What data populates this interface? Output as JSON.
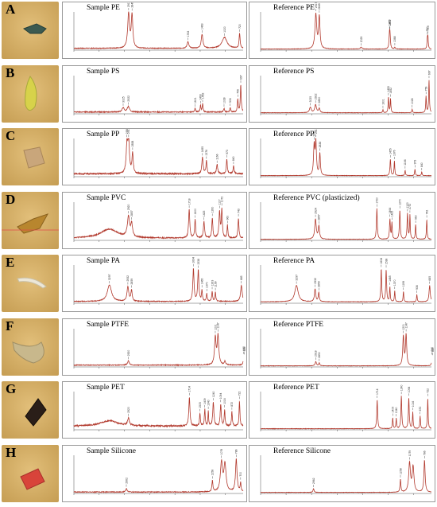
{
  "colors": {
    "spectrum": "#b23a2e",
    "axis": "#555555",
    "peak_label": "#333333"
  },
  "chart_data": [
    {
      "type": "line",
      "panel_letter": "A",
      "sample": {
        "title": "Sample PE",
        "peaks": [
          {
            "x": 2917,
            "y": 0.95,
            "w": 22,
            "label": "2917"
          },
          {
            "x": 2849,
            "y": 0.9,
            "w": 18,
            "label": "2849"
          },
          {
            "x": 1743,
            "y": 0.18,
            "w": 20,
            "label": "1743"
          },
          {
            "x": 1463,
            "y": 0.38,
            "w": 20,
            "label": "1463"
          },
          {
            "x": 1020,
            "y": 0.3,
            "w": 60,
            "label": "1020"
          },
          {
            "x": 720,
            "y": 0.4,
            "w": 12,
            "label": "720"
          }
        ],
        "noise": 0.02,
        "baseline": 0.05
      },
      "reference": {
        "title": "Reference PE",
        "peaks": [
          {
            "x": 2917,
            "y": 0.95,
            "w": 20,
            "label": "2917"
          },
          {
            "x": 2849,
            "y": 0.88,
            "w": 16,
            "label": "2849"
          },
          {
            "x": 2029,
            "y": 0.05,
            "w": 20,
            "label": "2029"
          },
          {
            "x": 1473,
            "y": 0.35,
            "w": 10,
            "label": "1473"
          },
          {
            "x": 1463,
            "y": 0.33,
            "w": 10,
            "label": "1463"
          },
          {
            "x": 1368,
            "y": 0.05,
            "w": 10,
            "label": "1368"
          },
          {
            "x": 730,
            "y": 0.25,
            "w": 8,
            "label": "730"
          },
          {
            "x": 719,
            "y": 0.3,
            "w": 8,
            "label": "719"
          }
        ],
        "noise": 0.01,
        "baseline": 0.03
      }
    },
    {
      "type": "line",
      "panel_letter": "B",
      "sample": {
        "title": "Sample PS",
        "peaks": [
          {
            "x": 3025,
            "y": 0.12,
            "w": 25,
            "label": "3025"
          },
          {
            "x": 2922,
            "y": 0.15,
            "w": 25,
            "label": "2922"
          },
          {
            "x": 1601,
            "y": 0.1,
            "w": 10,
            "label": "1601"
          },
          {
            "x": 1493,
            "y": 0.18,
            "w": 10,
            "label": "1493"
          },
          {
            "x": 1452,
            "y": 0.22,
            "w": 10,
            "label": "1452"
          },
          {
            "x": 1028,
            "y": 0.1,
            "w": 12,
            "label": "1028"
          },
          {
            "x": 906,
            "y": 0.12,
            "w": 10,
            "label": "906"
          },
          {
            "x": 756,
            "y": 0.35,
            "w": 10,
            "label": "756"
          },
          {
            "x": 697,
            "y": 0.75,
            "w": 10,
            "label": "697"
          }
        ],
        "noise": 0.025,
        "baseline": 0.05
      },
      "reference": {
        "title": "Reference PS",
        "peaks": [
          {
            "x": 3025,
            "y": 0.15,
            "w": 20,
            "label": "3025"
          },
          {
            "x": 2922,
            "y": 0.22,
            "w": 20,
            "label": "2922"
          },
          {
            "x": 2850,
            "y": 0.12,
            "w": 15,
            "label": "2850"
          },
          {
            "x": 1601,
            "y": 0.08,
            "w": 8,
            "label": "1601"
          },
          {
            "x": 1493,
            "y": 0.42,
            "w": 8,
            "label": "1493"
          },
          {
            "x": 1452,
            "y": 0.38,
            "w": 8,
            "label": "1452"
          },
          {
            "x": 1028,
            "y": 0.1,
            "w": 8,
            "label": "1028"
          },
          {
            "x": 756,
            "y": 0.45,
            "w": 8,
            "label": "756"
          },
          {
            "x": 697,
            "y": 0.9,
            "w": 8,
            "label": "697"
          }
        ],
        "noise": 0.01,
        "baseline": 0.03
      }
    },
    {
      "type": "line",
      "panel_letter": "C",
      "sample": {
        "title": "Sample PP",
        "peaks": [
          {
            "x": 2950,
            "y": 0.75,
            "w": 18,
            "label": "2950"
          },
          {
            "x": 2917,
            "y": 0.9,
            "w": 18,
            "label": "2917"
          },
          {
            "x": 2838,
            "y": 0.55,
            "w": 15,
            "label": "2838"
          },
          {
            "x": 1455,
            "y": 0.45,
            "w": 15,
            "label": "1455"
          },
          {
            "x": 1376,
            "y": 0.35,
            "w": 12,
            "label": "1376"
          },
          {
            "x": 1166,
            "y": 0.25,
            "w": 15,
            "label": "1166"
          },
          {
            "x": 973,
            "y": 0.4,
            "w": 12,
            "label": "973"
          },
          {
            "x": 840,
            "y": 0.22,
            "w": 12,
            "label": "840"
          }
        ],
        "noise": 0.04,
        "baseline": 0.08
      },
      "reference": {
        "title": "Reference PP",
        "peaks": [
          {
            "x": 2950,
            "y": 0.8,
            "w": 14,
            "label": "2950"
          },
          {
            "x": 2917,
            "y": 0.9,
            "w": 14,
            "label": "2917"
          },
          {
            "x": 2838,
            "y": 0.6,
            "w": 12,
            "label": "2838"
          },
          {
            "x": 1455,
            "y": 0.45,
            "w": 10,
            "label": "1455"
          },
          {
            "x": 1376,
            "y": 0.4,
            "w": 8,
            "label": "1376"
          },
          {
            "x": 1166,
            "y": 0.15,
            "w": 8,
            "label": "1166"
          },
          {
            "x": 973,
            "y": 0.18,
            "w": 8,
            "label": "973"
          },
          {
            "x": 840,
            "y": 0.1,
            "w": 8,
            "label": "840"
          }
        ],
        "noise": 0.01,
        "baseline": 0.03
      }
    },
    {
      "type": "line",
      "panel_letter": "D",
      "sample": {
        "title": "Sample PVC",
        "peaks": [
          {
            "x": 3300,
            "y": 0.25,
            "w": 200,
            "label": ""
          },
          {
            "x": 2920,
            "y": 0.55,
            "w": 25,
            "label": "2920"
          },
          {
            "x": 2857,
            "y": 0.35,
            "w": 20,
            "label": "2857"
          },
          {
            "x": 1718,
            "y": 0.78,
            "w": 14,
            "label": "1718"
          },
          {
            "x": 1600,
            "y": 0.5,
            "w": 12,
            "label": "1600"
          },
          {
            "x": 1425,
            "y": 0.45,
            "w": 14,
            "label": "1425"
          },
          {
            "x": 1260,
            "y": 0.55,
            "w": 12,
            "label": "1260"
          },
          {
            "x": 1117,
            "y": 0.72,
            "w": 14,
            "label": "1117"
          },
          {
            "x": 1072,
            "y": 0.78,
            "w": 12,
            "label": "1072"
          },
          {
            "x": 960,
            "y": 0.35,
            "w": 10,
            "label": "960"
          },
          {
            "x": 743,
            "y": 0.55,
            "w": 12,
            "label": "743"
          }
        ],
        "noise": 0.03,
        "baseline": 0.06
      },
      "reference": {
        "title": "Reference PVC (plasticized)",
        "peaks": [
          {
            "x": 2924,
            "y": 0.55,
            "w": 18,
            "label": "2924"
          },
          {
            "x": 2857,
            "y": 0.35,
            "w": 15,
            "label": "2857"
          },
          {
            "x": 1720,
            "y": 0.85,
            "w": 10,
            "label": "1720"
          },
          {
            "x": 1464,
            "y": 0.55,
            "w": 10,
            "label": "1464"
          },
          {
            "x": 1425,
            "y": 0.45,
            "w": 8,
            "label": "1425"
          },
          {
            "x": 1270,
            "y": 0.8,
            "w": 10,
            "label": "1270"
          },
          {
            "x": 1120,
            "y": 0.7,
            "w": 10,
            "label": "1120"
          },
          {
            "x": 1072,
            "y": 0.65,
            "w": 8,
            "label": "1072"
          },
          {
            "x": 960,
            "y": 0.4,
            "w": 8,
            "label": "960"
          },
          {
            "x": 742,
            "y": 0.55,
            "w": 8,
            "label": "742"
          }
        ],
        "noise": 0.01,
        "baseline": 0.03
      }
    },
    {
      "type": "line",
      "panel_letter": "E",
      "sample": {
        "title": "Sample PA",
        "peaks": [
          {
            "x": 3297,
            "y": 0.45,
            "w": 50,
            "label": "3297"
          },
          {
            "x": 2932,
            "y": 0.4,
            "w": 20,
            "label": "2932"
          },
          {
            "x": 2859,
            "y": 0.3,
            "w": 15,
            "label": "2859"
          },
          {
            "x": 1634,
            "y": 0.9,
            "w": 14,
            "label": "1634"
          },
          {
            "x": 1538,
            "y": 0.85,
            "w": 14,
            "label": "1538"
          },
          {
            "x": 1465,
            "y": 0.3,
            "w": 10,
            "label": "1465"
          },
          {
            "x": 1370,
            "y": 0.22,
            "w": 10,
            "label": "1370"
          },
          {
            "x": 1263,
            "y": 0.28,
            "w": 10,
            "label": "1263"
          },
          {
            "x": 1199,
            "y": 0.25,
            "w": 10,
            "label": "1199"
          },
          {
            "x": 685,
            "y": 0.45,
            "w": 18,
            "label": "685"
          }
        ],
        "noise": 0.02,
        "baseline": 0.05
      },
      "reference": {
        "title": "Reference PA",
        "peaks": [
          {
            "x": 3297,
            "y": 0.45,
            "w": 40,
            "label": "3297"
          },
          {
            "x": 2932,
            "y": 0.35,
            "w": 15,
            "label": "2932"
          },
          {
            "x": 2859,
            "y": 0.25,
            "w": 12,
            "label": "2859"
          },
          {
            "x": 1634,
            "y": 0.9,
            "w": 10,
            "label": "1634"
          },
          {
            "x": 1538,
            "y": 0.88,
            "w": 10,
            "label": "1538"
          },
          {
            "x": 1465,
            "y": 0.4,
            "w": 8,
            "label": "1465"
          },
          {
            "x": 1370,
            "y": 0.3,
            "w": 8,
            "label": "1370"
          },
          {
            "x": 1199,
            "y": 0.28,
            "w": 8,
            "label": "1199"
          },
          {
            "x": 936,
            "y": 0.2,
            "w": 8,
            "label": "936"
          },
          {
            "x": 685,
            "y": 0.45,
            "w": 14,
            "label": "685"
          }
        ],
        "noise": 0.01,
        "baseline": 0.04
      }
    },
    {
      "type": "line",
      "panel_letter": "F",
      "sample": {
        "title": "Sample PTFE",
        "peaks": [
          {
            "x": 2920,
            "y": 0.12,
            "w": 20,
            "label": "2920"
          },
          {
            "x": 1201,
            "y": 0.75,
            "w": 18,
            "label": "1201"
          },
          {
            "x": 1147,
            "y": 0.8,
            "w": 18,
            "label": "1147"
          },
          {
            "x": 1010,
            "y": 0.1,
            "w": 15,
            "label": ""
          },
          {
            "x": 640,
            "y": 0.22,
            "w": 10,
            "label": "640"
          },
          {
            "x": 625,
            "y": 0.18,
            "w": 8,
            "label": "625"
          }
        ],
        "noise": 0.02,
        "baseline": 0.05
      },
      "reference": {
        "title": "Reference PTFE",
        "peaks": [
          {
            "x": 2918,
            "y": 0.12,
            "w": 15,
            "label": "2918"
          },
          {
            "x": 2850,
            "y": 0.08,
            "w": 12,
            "label": "2850"
          },
          {
            "x": 1201,
            "y": 0.8,
            "w": 14,
            "label": "1201"
          },
          {
            "x": 1147,
            "y": 0.85,
            "w": 14,
            "label": "1147"
          },
          {
            "x": 640,
            "y": 0.22,
            "w": 8,
            "label": "640"
          },
          {
            "x": 625,
            "y": 0.2,
            "w": 8,
            "label": "625"
          }
        ],
        "noise": 0.01,
        "baseline": 0.03
      }
    },
    {
      "type": "line",
      "panel_letter": "G",
      "sample": {
        "title": "Sample PET",
        "peaks": [
          {
            "x": 3300,
            "y": 0.15,
            "w": 200,
            "label": ""
          },
          {
            "x": 2920,
            "y": 0.2,
            "w": 20,
            "label": "2920"
          },
          {
            "x": 1714,
            "y": 0.8,
            "w": 14,
            "label": "1714"
          },
          {
            "x": 1505,
            "y": 0.35,
            "w": 10,
            "label": "1505"
          },
          {
            "x": 1409,
            "y": 0.45,
            "w": 10,
            "label": "1409"
          },
          {
            "x": 1340,
            "y": 0.4,
            "w": 8,
            "label": "1340"
          },
          {
            "x": 1240,
            "y": 0.65,
            "w": 14,
            "label": "1240"
          },
          {
            "x": 1094,
            "y": 0.6,
            "w": 12,
            "label": "1094"
          },
          {
            "x": 1016,
            "y": 0.45,
            "w": 10,
            "label": "1016"
          },
          {
            "x": 872,
            "y": 0.4,
            "w": 10,
            "label": "872"
          },
          {
            "x": 722,
            "y": 0.7,
            "w": 10,
            "label": "722"
          }
        ],
        "noise": 0.04,
        "baseline": 0.1
      },
      "reference": {
        "title": "Reference PET",
        "peaks": [
          {
            "x": 1714,
            "y": 0.8,
            "w": 10,
            "label": "1714"
          },
          {
            "x": 1409,
            "y": 0.3,
            "w": 8,
            "label": "1409"
          },
          {
            "x": 1340,
            "y": 0.28,
            "w": 8,
            "label": "1340"
          },
          {
            "x": 1240,
            "y": 0.9,
            "w": 10,
            "label": "1240"
          },
          {
            "x": 1094,
            "y": 0.85,
            "w": 10,
            "label": "1094"
          },
          {
            "x": 1016,
            "y": 0.45,
            "w": 8,
            "label": "1016"
          },
          {
            "x": 872,
            "y": 0.35,
            "w": 8,
            "label": "872"
          },
          {
            "x": 722,
            "y": 0.85,
            "w": 8,
            "label": "722"
          }
        ],
        "noise": 0.01,
        "baseline": 0.03
      }
    },
    {
      "type": "line",
      "panel_letter": "H",
      "sample": {
        "title": "Sample Silicone",
        "peaks": [
          {
            "x": 2962,
            "y": 0.1,
            "w": 15,
            "label": "2962"
          },
          {
            "x": 1258,
            "y": 0.3,
            "w": 12,
            "label": "1258"
          },
          {
            "x": 1079,
            "y": 0.8,
            "w": 25,
            "label": "1079"
          },
          {
            "x": 1010,
            "y": 0.75,
            "w": 25,
            "label": ""
          },
          {
            "x": 786,
            "y": 0.9,
            "w": 18,
            "label": "786"
          },
          {
            "x": 700,
            "y": 0.25,
            "w": 10,
            "label": "700"
          }
        ],
        "noise": 0.02,
        "baseline": 0.04
      },
      "reference": {
        "title": "Reference Silicone",
        "peaks": [
          {
            "x": 2962,
            "y": 0.1,
            "w": 12,
            "label": "2962"
          },
          {
            "x": 1258,
            "y": 0.35,
            "w": 10,
            "label": "1258"
          },
          {
            "x": 1079,
            "y": 0.8,
            "w": 20,
            "label": "1079"
          },
          {
            "x": 1010,
            "y": 0.7,
            "w": 20,
            "label": ""
          },
          {
            "x": 786,
            "y": 0.88,
            "w": 14,
            "label": "786"
          }
        ],
        "noise": 0.01,
        "baseline": 0.03
      }
    }
  ],
  "x_range": [
    4000,
    650
  ],
  "y_range": [
    0,
    1
  ]
}
